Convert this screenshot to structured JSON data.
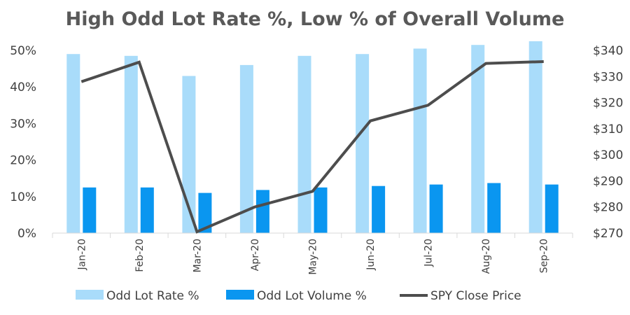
{
  "chart_data": {
    "type": "bar",
    "title": "High Odd Lot Rate %, Low % of Overall Volume",
    "categories": [
      "Jan-20",
      "Feb-20",
      "Mar-20",
      "Apr-20",
      "May-20",
      "Jun-20",
      "Jul-20",
      "Aug-20",
      "Sep-20"
    ],
    "series": [
      {
        "name": "Odd Lot Rate %",
        "type": "bar",
        "axis": "left",
        "color": "#A9DCFA",
        "values": [
          49,
          48.5,
          43,
          46,
          48.5,
          49,
          50.5,
          51.5,
          52.5
        ]
      },
      {
        "name": "Odd Lot Volume %",
        "type": "bar",
        "axis": "left",
        "color": "#0A96F0",
        "values": [
          12.5,
          12.5,
          11,
          11.8,
          12.5,
          12.9,
          13.3,
          13.7,
          13.3
        ]
      },
      {
        "name": "SPY Close Price",
        "type": "line",
        "axis": "right",
        "color": "#4D4D4D",
        "values": [
          328,
          335.5,
          270.5,
          280,
          286,
          313,
          319,
          335,
          335.7
        ]
      }
    ],
    "y_left": {
      "ylim": [
        0,
        50
      ],
      "ticks": [
        0,
        10,
        20,
        30,
        40,
        50
      ],
      "tick_labels": [
        "0%",
        "10%",
        "20%",
        "30%",
        "40%",
        "50%"
      ]
    },
    "y_right": {
      "ylim": [
        270,
        340
      ],
      "ticks": [
        270,
        280,
        290,
        300,
        310,
        320,
        330,
        340
      ],
      "tick_labels": [
        "$270",
        "$280",
        "$290",
        "$300",
        "$310",
        "$320",
        "$330",
        "$340"
      ]
    },
    "grid": false,
    "legend_position": "bottom"
  }
}
